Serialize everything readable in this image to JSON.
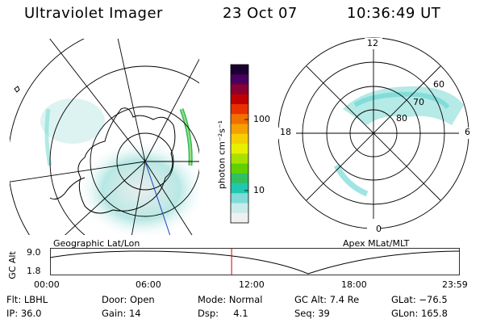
{
  "header": {
    "instrument": "Ultraviolet Imager",
    "date": "23 Oct 07",
    "time": "10:36:49 UT"
  },
  "left_map": {
    "label": "Geographic Lat/Lon"
  },
  "right_map": {
    "label": "Apex MLat/MLT",
    "mlt_labels": {
      "top": "12",
      "left": "18",
      "right": "6",
      "bottom": "0"
    },
    "lat_labels": [
      "60",
      "70",
      "80"
    ]
  },
  "colorbar": {
    "unit": "photon cm⁻²s⁻¹",
    "ticks": [
      "100",
      "10"
    ],
    "colors": [
      "#1a0030",
      "#4b0060",
      "#8a0030",
      "#c00000",
      "#e83000",
      "#f07000",
      "#f5a000",
      "#f5d000",
      "#e8f000",
      "#a8e000",
      "#60d000",
      "#30c060",
      "#20c8b0",
      "#80dcd8",
      "#c8ecec",
      "#f0f0f0"
    ]
  },
  "timeline": {
    "axis_label": "GC Alt",
    "y_ticks": [
      "9.0",
      "1.8"
    ],
    "x_ticks": [
      "00:00",
      "06:00",
      "12:00",
      "18:00",
      "23:59"
    ],
    "current_time_fraction": 0.444,
    "marker_color": "#cc0000"
  },
  "info": {
    "filter": "Flt: LBHL",
    "ip": "IP: 36.0",
    "door": "Door: Open",
    "gain": "Gain: 14",
    "mode": "Mode: Normal",
    "dsp": "Dsp:     4.1",
    "gcalt": "GC Alt: 7.4 Re",
    "seq": "Seq: 39",
    "glat": "GLat: −76.5",
    "glon": "GLon: 165.8"
  }
}
